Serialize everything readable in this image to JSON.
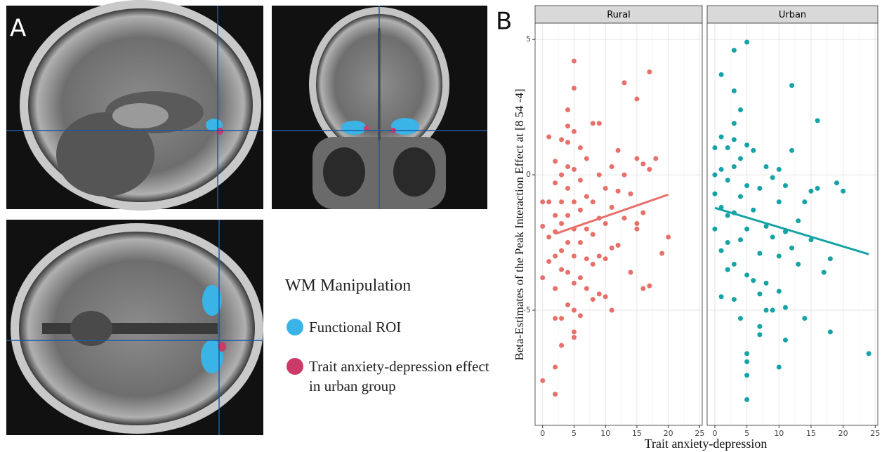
{
  "panel_a": {
    "label": "A",
    "legend": {
      "title": "WM Manipulation",
      "items": [
        {
          "label": "Functional ROI",
          "color": "#3ab4e6"
        },
        {
          "label": "Trait anxiety-depression effect in urban group",
          "color": "#cc3a6a"
        }
      ]
    }
  },
  "chart_data": {
    "type": "scatter",
    "label": "B",
    "x_label": "Trait anxiety-depression",
    "y_label": "Beta-Estimates of the Peak Interaction Effect at [8 54 -4]",
    "xlim": [
      -1.2,
      25.4
    ],
    "ylim": [
      -9.25,
      5.6
    ],
    "xticks": [
      0,
      5,
      10,
      15,
      20,
      25
    ],
    "yticks": [
      -5,
      0,
      5
    ],
    "grid": true,
    "facets": [
      {
        "name": "Rural",
        "color": "#e8706a",
        "x": [
          0,
          0,
          0,
          0,
          1,
          1,
          1,
          1,
          2,
          2,
          2,
          2,
          2,
          2,
          2,
          2,
          2,
          3,
          3,
          3,
          3,
          3,
          3,
          3,
          3,
          4,
          4,
          4,
          4,
          4,
          4,
          4,
          4,
          4,
          5,
          5,
          5,
          5,
          5,
          5,
          5,
          5,
          5,
          5,
          5,
          6,
          6,
          6,
          6,
          6,
          6,
          7,
          7,
          7,
          7,
          7,
          8,
          8,
          8,
          8,
          8,
          9,
          9,
          9,
          9,
          9,
          10,
          10,
          10,
          10,
          11,
          11,
          11,
          11,
          12,
          12,
          12,
          13,
          13,
          13,
          14,
          14,
          15,
          15,
          15,
          15,
          16,
          16,
          16,
          17,
          17,
          17,
          18,
          19,
          20
        ],
        "y": [
          -7.6,
          -3.8,
          -1,
          -1.9,
          -3.2,
          -1,
          -2.3,
          1.4,
          -8.1,
          -7.1,
          -5.3,
          -4.2,
          -3,
          -2.1,
          -1.5,
          0.5,
          -0.3,
          -6.3,
          -5.3,
          -3.5,
          -2.8,
          -1.8,
          -1,
          0,
          1.3,
          -4.8,
          -3.6,
          -2.5,
          -1.5,
          -0.5,
          0.3,
          1.2,
          2.4,
          1.8,
          4.2,
          3.2,
          -6,
          -5.8,
          -5,
          -4,
          -3,
          -2,
          -1,
          0.2,
          1.6,
          -5.2,
          -3.8,
          -2.5,
          -1.3,
          -0.2,
          1,
          -4.2,
          -3.1,
          -2,
          -0.8,
          0.6,
          -4.6,
          -3.3,
          -2.2,
          -1,
          1.9,
          -4.4,
          -3,
          -1.6,
          0,
          1.9,
          -4.5,
          -3.1,
          -1.8,
          -0.5,
          -5,
          -2.7,
          -1.2,
          0.3,
          -2.6,
          -0.6,
          0.9,
          3.4,
          -1.6,
          0,
          -3.6,
          -0.7,
          2.8,
          -2,
          0.6,
          -1.8,
          -4.2,
          -1.4,
          0.4,
          3.8,
          -4.1,
          0.2,
          0.6,
          -2.9,
          -2.3
        ],
        "fit": {
          "x": [
            2,
            20
          ],
          "y": [
            -2.18,
            -0.73
          ]
        }
      },
      {
        "name": "Urban",
        "color": "#16a3a6",
        "x": [
          0,
          0,
          0,
          0,
          1,
          1,
          1,
          1,
          1,
          1,
          2,
          2,
          2,
          2,
          2,
          3,
          3,
          3,
          3,
          3,
          3,
          3,
          3,
          4,
          4,
          4,
          4,
          4,
          5,
          5,
          5,
          5,
          5,
          5,
          5,
          5,
          5,
          6,
          6,
          6,
          7,
          7,
          7,
          7,
          7,
          8,
          8,
          8,
          8,
          9,
          9,
          9,
          10,
          10,
          10,
          10,
          10,
          11,
          11,
          11,
          11,
          12,
          12,
          12,
          13,
          13,
          14,
          14,
          15,
          15,
          16,
          16,
          17,
          18,
          18,
          19,
          20,
          24
        ],
        "y": [
          1,
          0,
          -0.7,
          -2,
          3.7,
          -4.5,
          -2.8,
          -1.2,
          0.2,
          1.4,
          -2.5,
          -1.5,
          -0.2,
          1,
          -3.5,
          4.6,
          3.1,
          1.9,
          -4.6,
          -3.3,
          -1.4,
          0.3,
          1.3,
          -5.3,
          -2.4,
          -0.8,
          0.6,
          2.4,
          4.9,
          -6.6,
          -7.4,
          -8.3,
          -6.9,
          -3.7,
          -2,
          -0.4,
          1.1,
          -3.9,
          -1.3,
          0.9,
          -5.6,
          -5.9,
          -4.4,
          -2.9,
          -0.5,
          -5,
          -4,
          -1.9,
          0.3,
          -5,
          -2.3,
          -0.1,
          -7.1,
          -4.3,
          -3,
          -1,
          0.2,
          -6.1,
          -4.9,
          -2.1,
          -0.4,
          3.3,
          -2.7,
          0.9,
          -1.7,
          -3.3,
          -5.3,
          -1,
          -2.4,
          -0.6,
          2,
          -0.5,
          -3.6,
          -5.8,
          -3.1,
          -0.3,
          -0.6,
          -6.6
        ],
        "fit": {
          "x": [
            0,
            24
          ],
          "y": [
            -1.22,
            -2.93
          ]
        }
      }
    ]
  }
}
